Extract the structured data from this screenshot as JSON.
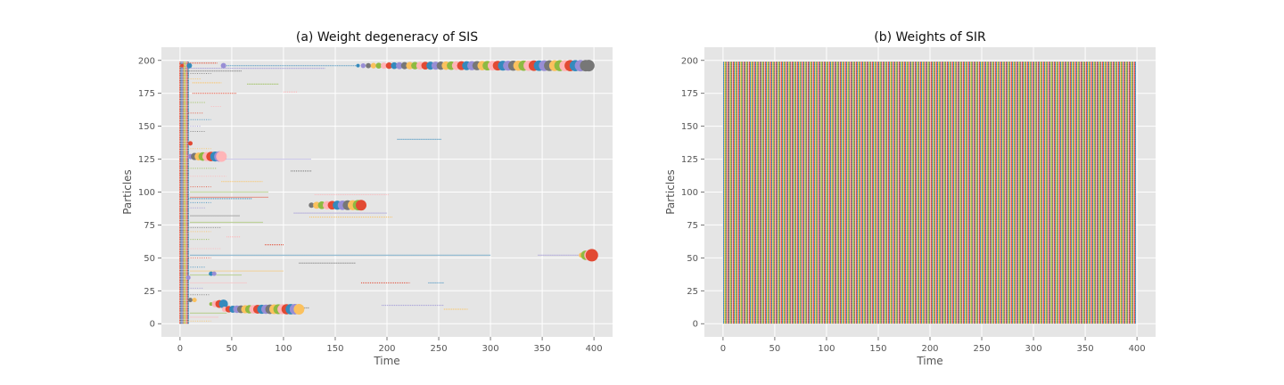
{
  "chart_data": [
    {
      "type": "scatter",
      "title": "(a) Weight degeneracy of SIS",
      "xlabel": "Time",
      "ylabel": "Particles",
      "xlim": [
        -18,
        418
      ],
      "ylim": [
        -10,
        210
      ],
      "xticks": [
        0,
        50,
        100,
        150,
        200,
        250,
        300,
        350,
        400
      ],
      "yticks": [
        0,
        25,
        50,
        75,
        100,
        125,
        150,
        175,
        200
      ],
      "grid": true,
      "background": "#e5e5e5",
      "grid_color": "#ffffff",
      "colors": [
        "#e24a33",
        "#348abd",
        "#988ed5",
        "#777777",
        "#fbc15e",
        "#8eba42",
        "#ffb5b8"
      ],
      "dense_columns": {
        "x_range": [
          0,
          8
        ],
        "particles": [
          0,
          199
        ],
        "marker_size": 1.5
      },
      "series": [
        {
          "particle": 196,
          "x": [
            2,
            9,
            42
          ],
          "size": [
            2,
            3,
            3
          ]
        },
        {
          "particle": 196,
          "x_range": [
            172,
            395
          ],
          "step": 5,
          "size_start": 2,
          "size_end": 6.5,
          "final_color": "#777777"
        },
        {
          "particle": 127,
          "x_range": [
            10,
            40
          ],
          "step": 4,
          "size_start": 3,
          "size_end": 6,
          "final_color": "#ffb5b8"
        },
        {
          "particle": 90,
          "x_range": [
            127,
            175
          ],
          "step": 5,
          "size_start": 3,
          "size_end": 6,
          "final_color": "#e24a33"
        },
        {
          "particle": 52,
          "x_range": [
            388,
            398
          ],
          "step": 4,
          "size_start": 3,
          "size_end": 7,
          "final_color": "#e24a33"
        },
        {
          "particle": 15,
          "x_range": [
            30,
            42
          ],
          "step": 4,
          "size_start": 2,
          "size_end": 5,
          "final_color": "#348abd"
        },
        {
          "particle": 11,
          "x_range": [
            43,
            115
          ],
          "step": 4,
          "size_start": 3,
          "size_end": 6,
          "final_color": "#fbc15e"
        },
        {
          "particle": 137,
          "x": [
            10
          ],
          "size": [
            2.5
          ]
        },
        {
          "particle": 38,
          "x": [
            30,
            33
          ],
          "size": [
            2.5,
            2.5
          ]
        },
        {
          "particle": 35,
          "x": [
            8
          ],
          "size": [
            2.5
          ]
        },
        {
          "particle": 18,
          "x": [
            10,
            14
          ],
          "size": [
            2.5,
            2.5
          ]
        }
      ],
      "trails": [
        {
          "particle": 198,
          "x_range": [
            8,
            36
          ]
        },
        {
          "particle": 196,
          "x_range": [
            40,
            172
          ]
        },
        {
          "particle": 194,
          "x_range": [
            5,
            140
          ]
        },
        {
          "particle": 192,
          "x_range": [
            5,
            60
          ]
        },
        {
          "particle": 183,
          "x_range": [
            12,
            40
          ]
        },
        {
          "particle": 182,
          "x_range": [
            65,
            95
          ]
        },
        {
          "particle": 176,
          "x_range": [
            100,
            113
          ]
        },
        {
          "particle": 175,
          "x_range": [
            12,
            55
          ]
        },
        {
          "particle": 140,
          "x_range": [
            210,
            253
          ]
        },
        {
          "particle": 125,
          "x_range": [
            10,
            127
          ]
        },
        {
          "particle": 116,
          "x_range": [
            107,
            127
          ]
        },
        {
          "particle": 108,
          "x_range": [
            40,
            80
          ]
        },
        {
          "particle": 100,
          "x_range": [
            10,
            85
          ]
        },
        {
          "particle": 98,
          "x_range": [
            130,
            202
          ]
        },
        {
          "particle": 96,
          "x_range": [
            10,
            85
          ]
        },
        {
          "particle": 95,
          "x_range": [
            8,
            70
          ]
        },
        {
          "particle": 84,
          "x_range": [
            110,
            200
          ]
        },
        {
          "particle": 82,
          "x_range": [
            10,
            58
          ]
        },
        {
          "particle": 81,
          "x_range": [
            125,
            205
          ]
        },
        {
          "particle": 77,
          "x_range": [
            10,
            80
          ]
        },
        {
          "particle": 66,
          "x_range": [
            45,
            58
          ]
        },
        {
          "particle": 60,
          "x_range": [
            82,
            100
          ]
        },
        {
          "particle": 52,
          "x_range": [
            10,
            300
          ]
        },
        {
          "particle": 52,
          "x_range": [
            346,
            388
          ]
        },
        {
          "particle": 46,
          "x_range": [
            115,
            170
          ]
        },
        {
          "particle": 40,
          "x_range": [
            10,
            100
          ]
        },
        {
          "particle": 37,
          "x_range": [
            10,
            60
          ]
        },
        {
          "particle": 31,
          "x_range": [
            10,
            65
          ]
        },
        {
          "particle": 31,
          "x_range": [
            175,
            222
          ]
        },
        {
          "particle": 31,
          "x_range": [
            240,
            255
          ]
        },
        {
          "particle": 14,
          "x_range": [
            195,
            255
          ]
        },
        {
          "particle": 12,
          "x_range": [
            115,
            125
          ]
        },
        {
          "particle": 11,
          "x_range": [
            255,
            278
          ]
        },
        {
          "particle": 8,
          "x_range": [
            10,
            45
          ]
        },
        {
          "particle": 5,
          "x_range": [
            10,
            37
          ]
        }
      ],
      "short_ticks": [
        {
          "particle": 190,
          "x_range": [
            10,
            30
          ]
        },
        {
          "particle": 186,
          "x_range": [
            8,
            20
          ]
        },
        {
          "particle": 168,
          "x_range": [
            8,
            25
          ]
        },
        {
          "particle": 165,
          "x_range": [
            30,
            40
          ]
        },
        {
          "particle": 160,
          "x_range": [
            8,
            22
          ]
        },
        {
          "particle": 155,
          "x_range": [
            8,
            30
          ]
        },
        {
          "particle": 150,
          "x_range": [
            10,
            20
          ]
        },
        {
          "particle": 146,
          "x_range": [
            10,
            25
          ]
        },
        {
          "particle": 133,
          "x_range": [
            10,
            30
          ]
        },
        {
          "particle": 118,
          "x_range": [
            8,
            35
          ]
        },
        {
          "particle": 112,
          "x_range": [
            10,
            45
          ]
        },
        {
          "particle": 104,
          "x_range": [
            10,
            30
          ]
        },
        {
          "particle": 92,
          "x_range": [
            10,
            30
          ]
        },
        {
          "particle": 88,
          "x_range": [
            8,
            25
          ]
        },
        {
          "particle": 73,
          "x_range": [
            8,
            40
          ]
        },
        {
          "particle": 70,
          "x_range": [
            8,
            30
          ]
        },
        {
          "particle": 64,
          "x_range": [
            10,
            28
          ]
        },
        {
          "particle": 57,
          "x_range": [
            8,
            40
          ]
        },
        {
          "particle": 50,
          "x_range": [
            8,
            30
          ]
        },
        {
          "particle": 43,
          "x_range": [
            10,
            25
          ]
        },
        {
          "particle": 27,
          "x_range": [
            8,
            22
          ]
        },
        {
          "particle": 22,
          "x_range": [
            10,
            28
          ]
        },
        {
          "particle": 2,
          "x_range": [
            8,
            30
          ]
        }
      ]
    },
    {
      "type": "scatter",
      "title": "(b) Weights of SIR",
      "xlabel": "Time",
      "ylabel": "Particles",
      "xlim": [
        -18,
        418
      ],
      "ylim": [
        -10,
        210
      ],
      "xticks": [
        0,
        50,
        100,
        150,
        200,
        250,
        300,
        350,
        400
      ],
      "yticks": [
        0,
        25,
        50,
        75,
        100,
        125,
        150,
        175,
        200
      ],
      "grid": true,
      "background": "#e5e5e5",
      "grid_color": "#ffffff",
      "colors": [
        "#e24a33",
        "#348abd",
        "#988ed5",
        "#777777",
        "#fbc15e",
        "#8eba42",
        "#ffb5b8"
      ],
      "uniform_field": {
        "x_range": [
          0,
          399
        ],
        "particles": [
          0,
          199
        ],
        "equal_weights": true
      }
    }
  ]
}
